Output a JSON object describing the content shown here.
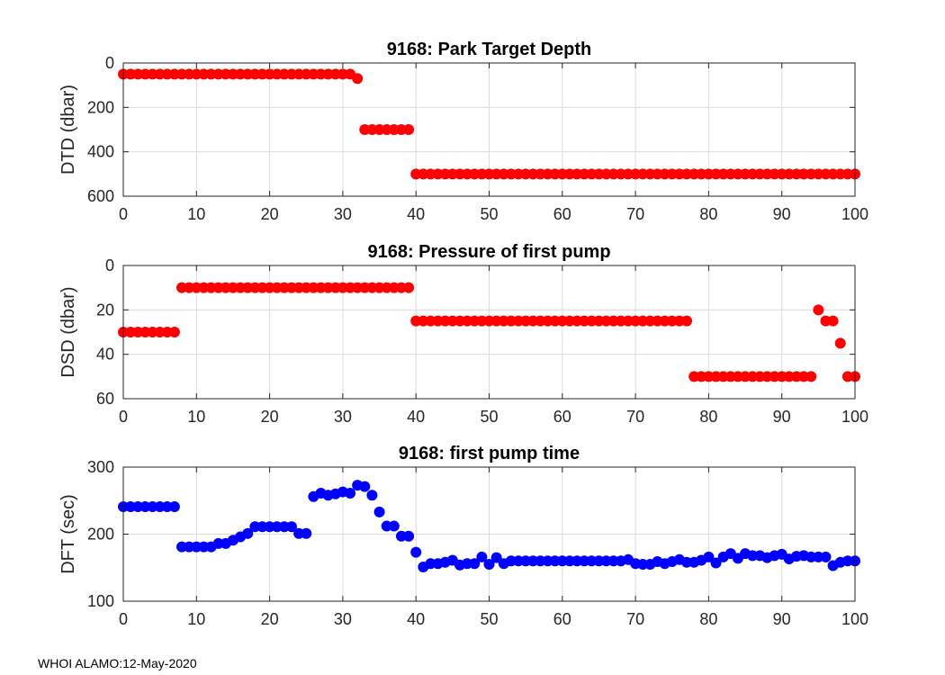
{
  "footer": "WHOI ALAMO:12-May-2020",
  "chart_data": [
    {
      "type": "scatter",
      "title": "9168: Park Target Depth",
      "xlabel": "",
      "ylabel": "DTD (dbar)",
      "xlim": [
        0,
        100
      ],
      "ylim": [
        0,
        600
      ],
      "y_reversed": true,
      "xticks": [
        0,
        10,
        20,
        30,
        40,
        50,
        60,
        70,
        80,
        90,
        100
      ],
      "yticks": [
        0,
        200,
        400,
        600
      ],
      "grid": true,
      "color": "#ff0000",
      "series": [
        {
          "name": "DTD",
          "segments": [
            {
              "x_start": 0,
              "x_end": 31,
              "y": 50
            },
            {
              "x_start": 32,
              "x_end": 32,
              "y": 70
            },
            {
              "x_start": 33,
              "x_end": 39,
              "y": 300
            },
            {
              "x_start": 40,
              "x_end": 100,
              "y": 500
            }
          ]
        }
      ]
    },
    {
      "type": "scatter",
      "title": "9168: Pressure of first pump",
      "xlabel": "",
      "ylabel": "DSD (dbar)",
      "xlim": [
        0,
        100
      ],
      "ylim": [
        0,
        60
      ],
      "y_reversed": true,
      "xticks": [
        0,
        10,
        20,
        30,
        40,
        50,
        60,
        70,
        80,
        90,
        100
      ],
      "yticks": [
        0,
        20,
        40,
        60
      ],
      "grid": true,
      "color": "#ff0000",
      "series": [
        {
          "name": "DSD",
          "segments": [
            {
              "x_start": 0,
              "x_end": 7,
              "y": 30
            },
            {
              "x_start": 8,
              "x_end": 39,
              "y": 10
            },
            {
              "x_start": 40,
              "x_end": 77,
              "y": 25
            },
            {
              "x_start": 78,
              "x_end": 94,
              "y": 50
            },
            {
              "x_start": 95,
              "x_end": 95,
              "y": 20
            },
            {
              "x_start": 96,
              "x_end": 97,
              "y": 25
            },
            {
              "x_start": 98,
              "x_end": 98,
              "y": 35
            },
            {
              "x_start": 99,
              "x_end": 100,
              "y": 50
            }
          ]
        }
      ]
    },
    {
      "type": "scatter",
      "title": "9168: first pump time",
      "xlabel": "",
      "ylabel": "DFT (sec)",
      "xlim": [
        0,
        100
      ],
      "ylim": [
        100,
        300
      ],
      "y_reversed": false,
      "xticks": [
        0,
        10,
        20,
        30,
        40,
        50,
        60,
        70,
        80,
        90,
        100
      ],
      "yticks": [
        100,
        200,
        300
      ],
      "grid": true,
      "color": "#0000ff",
      "series": [
        {
          "name": "DFT",
          "x": [
            0,
            1,
            2,
            3,
            4,
            5,
            6,
            7,
            8,
            9,
            10,
            11,
            12,
            13,
            14,
            15,
            16,
            17,
            18,
            19,
            20,
            21,
            22,
            23,
            24,
            25,
            26,
            27,
            28,
            29,
            30,
            31,
            32,
            33,
            34,
            35,
            36,
            37,
            38,
            39,
            40,
            41,
            42,
            43,
            44,
            45,
            46,
            47,
            48,
            49,
            50,
            51,
            52,
            53,
            54,
            55,
            56,
            57,
            58,
            59,
            60,
            61,
            62,
            63,
            64,
            65,
            66,
            67,
            68,
            69,
            70,
            71,
            72,
            73,
            74,
            75,
            76,
            77,
            78,
            79,
            80,
            81,
            82,
            83,
            84,
            85,
            86,
            87,
            88,
            89,
            90,
            91,
            92,
            93,
            94,
            95,
            96,
            97,
            98,
            99,
            100
          ],
          "y": [
            241,
            241,
            241,
            241,
            241,
            241,
            241,
            241,
            181,
            181,
            181,
            181,
            181,
            186,
            186,
            191,
            196,
            201,
            211,
            211,
            211,
            211,
            211,
            211,
            201,
            201,
            256,
            261,
            258,
            260,
            263,
            261,
            273,
            271,
            258,
            233,
            212,
            212,
            197,
            197,
            173,
            151,
            156,
            156,
            158,
            161,
            154,
            156,
            156,
            166,
            155,
            165,
            156,
            160,
            160,
            160,
            160,
            160,
            160,
            160,
            160,
            160,
            160,
            160,
            160,
            160,
            160,
            160,
            160,
            162,
            156,
            155,
            155,
            159,
            156,
            159,
            162,
            158,
            158,
            161,
            166,
            157,
            166,
            171,
            164,
            171,
            168,
            168,
            165,
            168,
            170,
            163,
            167,
            168,
            166,
            166,
            166,
            153,
            158,
            160,
            160
          ]
        }
      ]
    }
  ]
}
